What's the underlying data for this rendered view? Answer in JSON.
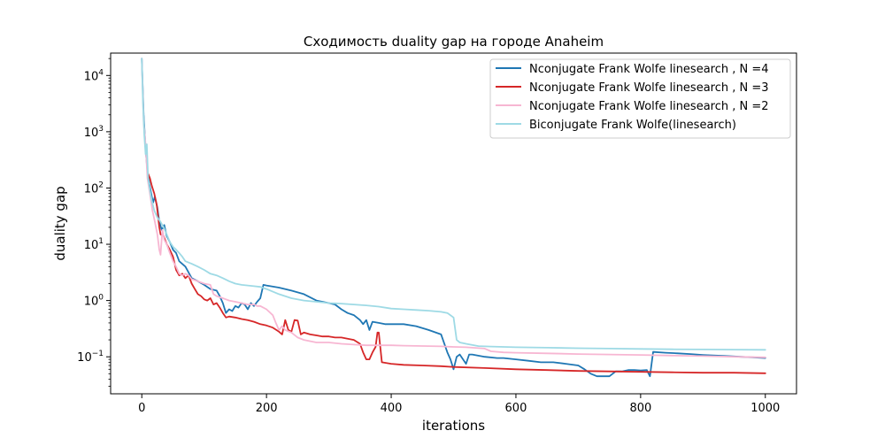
{
  "chart_data": {
    "type": "line",
    "title": "Сходимость duality gap на городе Anaheim",
    "xlabel": "iterations",
    "ylabel": "duality gap",
    "xlim": [
      -50,
      1050
    ],
    "ylim": [
      0.022,
      25000
    ],
    "yscale": "log",
    "x_ticks": [
      0,
      200,
      400,
      600,
      800,
      1000
    ],
    "x_tick_labels": [
      "0",
      "200",
      "400",
      "600",
      "800",
      "1000"
    ],
    "y_ticks": [
      0.1,
      1,
      10,
      100,
      1000,
      10000
    ],
    "y_tick_labels": [
      {
        "base": "10",
        "exp": "−1"
      },
      {
        "base": "10",
        "exp": "0"
      },
      {
        "base": "10",
        "exp": "1"
      },
      {
        "base": "10",
        "exp": "2"
      },
      {
        "base": "10",
        "exp": "3"
      },
      {
        "base": "10",
        "exp": "4"
      }
    ],
    "grid": false,
    "legend_position": "upper right",
    "series": [
      {
        "name": "Nconjugate Frank Wolfe linesearch , N =4",
        "color": "#1f77b4",
        "points": [
          [
            0,
            20000
          ],
          [
            3,
            2000
          ],
          [
            6,
            500
          ],
          [
            9,
            200
          ],
          [
            12,
            120
          ],
          [
            15,
            80
          ],
          [
            18,
            55
          ],
          [
            21,
            70
          ],
          [
            25,
            45
          ],
          [
            28,
            25
          ],
          [
            32,
            18
          ],
          [
            36,
            22
          ],
          [
            40,
            14
          ],
          [
            45,
            11
          ],
          [
            50,
            8
          ],
          [
            55,
            7
          ],
          [
            60,
            5
          ],
          [
            70,
            4
          ],
          [
            80,
            2.5
          ],
          [
            90,
            2.2
          ],
          [
            100,
            1.9
          ],
          [
            110,
            1.6
          ],
          [
            120,
            1.5
          ],
          [
            125,
            1.2
          ],
          [
            130,
            0.9
          ],
          [
            135,
            0.6
          ],
          [
            140,
            0.7
          ],
          [
            145,
            0.65
          ],
          [
            150,
            0.8
          ],
          [
            155,
            0.75
          ],
          [
            160,
            0.9
          ],
          [
            165,
            0.85
          ],
          [
            170,
            0.7
          ],
          [
            175,
            0.9
          ],
          [
            180,
            0.8
          ],
          [
            185,
            0.95
          ],
          [
            190,
            1.1
          ],
          [
            195,
            1.9
          ],
          [
            200,
            1.85
          ],
          [
            220,
            1.7
          ],
          [
            240,
            1.5
          ],
          [
            260,
            1.3
          ],
          [
            280,
            1.0
          ],
          [
            300,
            0.9
          ],
          [
            310,
            0.85
          ],
          [
            320,
            0.7
          ],
          [
            330,
            0.6
          ],
          [
            340,
            0.55
          ],
          [
            350,
            0.45
          ],
          [
            355,
            0.38
          ],
          [
            360,
            0.45
          ],
          [
            365,
            0.3
          ],
          [
            370,
            0.42
          ],
          [
            380,
            0.4
          ],
          [
            390,
            0.38
          ],
          [
            400,
            0.38
          ],
          [
            420,
            0.38
          ],
          [
            440,
            0.35
          ],
          [
            460,
            0.3
          ],
          [
            480,
            0.25
          ],
          [
            490,
            0.12
          ],
          [
            495,
            0.09
          ],
          [
            500,
            0.06
          ],
          [
            505,
            0.1
          ],
          [
            510,
            0.11
          ],
          [
            520,
            0.075
          ],
          [
            525,
            0.11
          ],
          [
            530,
            0.11
          ],
          [
            550,
            0.1
          ],
          [
            570,
            0.095
          ],
          [
            580,
            0.095
          ],
          [
            600,
            0.09
          ],
          [
            620,
            0.085
          ],
          [
            640,
            0.08
          ],
          [
            660,
            0.08
          ],
          [
            680,
            0.075
          ],
          [
            700,
            0.07
          ],
          [
            710,
            0.06
          ],
          [
            720,
            0.05
          ],
          [
            730,
            0.045
          ],
          [
            740,
            0.045
          ],
          [
            750,
            0.045
          ],
          [
            760,
            0.055
          ],
          [
            770,
            0.055
          ],
          [
            780,
            0.058
          ],
          [
            790,
            0.058
          ],
          [
            800,
            0.057
          ],
          [
            810,
            0.058
          ],
          [
            815,
            0.045
          ],
          [
            820,
            0.122
          ],
          [
            840,
            0.118
          ],
          [
            860,
            0.115
          ],
          [
            880,
            0.112
          ],
          [
            900,
            0.108
          ],
          [
            920,
            0.105
          ],
          [
            940,
            0.103
          ],
          [
            960,
            0.1
          ],
          [
            980,
            0.098
          ],
          [
            1000,
            0.095
          ]
        ]
      },
      {
        "name": "Nconjugate Frank Wolfe linesearch , N =3",
        "color": "#d62728",
        "points": [
          [
            10,
            180
          ],
          [
            13,
            150
          ],
          [
            16,
            110
          ],
          [
            20,
            80
          ],
          [
            24,
            50
          ],
          [
            28,
            20
          ],
          [
            30,
            15
          ],
          [
            35,
            14
          ],
          [
            40,
            10
          ],
          [
            45,
            8
          ],
          [
            50,
            6
          ],
          [
            55,
            3.5
          ],
          [
            60,
            2.8
          ],
          [
            65,
            3.0
          ],
          [
            70,
            2.5
          ],
          [
            75,
            2.8
          ],
          [
            80,
            2.0
          ],
          [
            85,
            1.6
          ],
          [
            90,
            1.3
          ],
          [
            95,
            1.2
          ],
          [
            100,
            1.05
          ],
          [
            105,
            1.0
          ],
          [
            110,
            1.1
          ],
          [
            115,
            0.85
          ],
          [
            120,
            0.9
          ],
          [
            125,
            0.75
          ],
          [
            130,
            0.6
          ],
          [
            135,
            0.5
          ],
          [
            140,
            0.52
          ],
          [
            150,
            0.5
          ],
          [
            160,
            0.47
          ],
          [
            170,
            0.45
          ],
          [
            180,
            0.42
          ],
          [
            190,
            0.38
          ],
          [
            200,
            0.36
          ],
          [
            210,
            0.33
          ],
          [
            220,
            0.28
          ],
          [
            225,
            0.25
          ],
          [
            230,
            0.45
          ],
          [
            235,
            0.3
          ],
          [
            240,
            0.28
          ],
          [
            245,
            0.45
          ],
          [
            250,
            0.44
          ],
          [
            255,
            0.25
          ],
          [
            260,
            0.27
          ],
          [
            270,
            0.25
          ],
          [
            280,
            0.24
          ],
          [
            290,
            0.23
          ],
          [
            300,
            0.23
          ],
          [
            310,
            0.22
          ],
          [
            320,
            0.22
          ],
          [
            330,
            0.21
          ],
          [
            340,
            0.2
          ],
          [
            350,
            0.17
          ],
          [
            355,
            0.12
          ],
          [
            360,
            0.09
          ],
          [
            365,
            0.09
          ],
          [
            370,
            0.12
          ],
          [
            375,
            0.15
          ],
          [
            378,
            0.27
          ],
          [
            380,
            0.27
          ],
          [
            385,
            0.08
          ],
          [
            400,
            0.075
          ],
          [
            420,
            0.072
          ],
          [
            450,
            0.07
          ],
          [
            480,
            0.068
          ],
          [
            500,
            0.066
          ],
          [
            550,
            0.063
          ],
          [
            600,
            0.06
          ],
          [
            650,
            0.058
          ],
          [
            700,
            0.056
          ],
          [
            750,
            0.055
          ],
          [
            800,
            0.054
          ],
          [
            850,
            0.053
          ],
          [
            900,
            0.052
          ],
          [
            950,
            0.052
          ],
          [
            1000,
            0.051
          ]
        ]
      },
      {
        "name": "Nconjugate Frank Wolfe linesearch , N =2",
        "color": "#f7b6d2",
        "points": [
          [
            0,
            20000
          ],
          [
            3,
            1500
          ],
          [
            6,
            600
          ],
          [
            9,
            150
          ],
          [
            13,
            80
          ],
          [
            17,
            40
          ],
          [
            21,
            25
          ],
          [
            25,
            15
          ],
          [
            28,
            8
          ],
          [
            30,
            6.5
          ],
          [
            33,
            18
          ],
          [
            36,
            12
          ],
          [
            40,
            10
          ],
          [
            45,
            7
          ],
          [
            50,
            5
          ],
          [
            55,
            4
          ],
          [
            60,
            3
          ],
          [
            65,
            2.8
          ],
          [
            70,
            3.0
          ],
          [
            75,
            2.8
          ],
          [
            80,
            2.4
          ],
          [
            90,
            2.2
          ],
          [
            100,
            2.0
          ],
          [
            110,
            1.9
          ],
          [
            115,
            1.3
          ],
          [
            120,
            1.2
          ],
          [
            130,
            1.1
          ],
          [
            140,
            1.0
          ],
          [
            150,
            0.95
          ],
          [
            160,
            0.9
          ],
          [
            170,
            0.85
          ],
          [
            180,
            0.85
          ],
          [
            185,
            0.8
          ],
          [
            190,
            0.8
          ],
          [
            200,
            0.7
          ],
          [
            210,
            0.55
          ],
          [
            215,
            0.4
          ],
          [
            220,
            0.3
          ],
          [
            225,
            0.35
          ],
          [
            230,
            0.3
          ],
          [
            240,
            0.27
          ],
          [
            250,
            0.22
          ],
          [
            260,
            0.2
          ],
          [
            280,
            0.18
          ],
          [
            300,
            0.18
          ],
          [
            320,
            0.17
          ],
          [
            340,
            0.165
          ],
          [
            360,
            0.16
          ],
          [
            380,
            0.16
          ],
          [
            400,
            0.16
          ],
          [
            420,
            0.158
          ],
          [
            440,
            0.156
          ],
          [
            460,
            0.155
          ],
          [
            480,
            0.153
          ],
          [
            500,
            0.15
          ],
          [
            520,
            0.148
          ],
          [
            550,
            0.14
          ],
          [
            560,
            0.125
          ],
          [
            580,
            0.12
          ],
          [
            600,
            0.118
          ],
          [
            650,
            0.115
          ],
          [
            700,
            0.112
          ],
          [
            750,
            0.11
          ],
          [
            800,
            0.108
          ],
          [
            850,
            0.105
          ],
          [
            900,
            0.103
          ],
          [
            950,
            0.1
          ],
          [
            1000,
            0.098
          ]
        ]
      },
      {
        "name": "Biconjugate Frank Wolfe(linesearch)",
        "color": "#9edae5",
        "points": [
          [
            0,
            20000
          ],
          [
            2,
            3000
          ],
          [
            4,
            900
          ],
          [
            6,
            400
          ],
          [
            8,
            600
          ],
          [
            10,
            150
          ],
          [
            13,
            90
          ],
          [
            16,
            60
          ],
          [
            20,
            40
          ],
          [
            25,
            30
          ],
          [
            30,
            25
          ],
          [
            35,
            20
          ],
          [
            40,
            15
          ],
          [
            45,
            11
          ],
          [
            50,
            9
          ],
          [
            55,
            8
          ],
          [
            60,
            7
          ],
          [
            65,
            6
          ],
          [
            70,
            5
          ],
          [
            80,
            4.5
          ],
          [
            90,
            4
          ],
          [
            100,
            3.5
          ],
          [
            110,
            3.0
          ],
          [
            120,
            2.8
          ],
          [
            130,
            2.5
          ],
          [
            140,
            2.2
          ],
          [
            150,
            2.0
          ],
          [
            160,
            1.9
          ],
          [
            170,
            1.85
          ],
          [
            180,
            1.8
          ],
          [
            190,
            1.75
          ],
          [
            200,
            1.6
          ],
          [
            220,
            1.3
          ],
          [
            240,
            1.1
          ],
          [
            260,
            1.0
          ],
          [
            280,
            0.95
          ],
          [
            300,
            0.9
          ],
          [
            320,
            0.88
          ],
          [
            340,
            0.85
          ],
          [
            360,
            0.82
          ],
          [
            380,
            0.78
          ],
          [
            400,
            0.72
          ],
          [
            420,
            0.7
          ],
          [
            440,
            0.68
          ],
          [
            460,
            0.66
          ],
          [
            480,
            0.63
          ],
          [
            490,
            0.6
          ],
          [
            500,
            0.5
          ],
          [
            505,
            0.2
          ],
          [
            510,
            0.18
          ],
          [
            520,
            0.17
          ],
          [
            540,
            0.155
          ],
          [
            560,
            0.152
          ],
          [
            580,
            0.15
          ],
          [
            600,
            0.148
          ],
          [
            650,
            0.145
          ],
          [
            700,
            0.142
          ],
          [
            750,
            0.14
          ],
          [
            800,
            0.138
          ],
          [
            850,
            0.136
          ],
          [
            900,
            0.135
          ],
          [
            950,
            0.134
          ],
          [
            1000,
            0.133
          ]
        ]
      }
    ]
  }
}
